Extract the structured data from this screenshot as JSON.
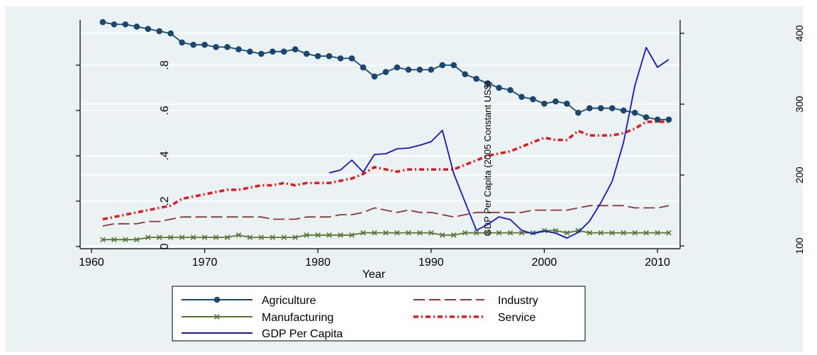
{
  "chart_data": {
    "type": "line",
    "xlabel": "Year",
    "right_axis_label": "GDP Per Capita (2005 Constant US$)",
    "x_ticks": [
      1960,
      1970,
      1980,
      1990,
      2000,
      2010
    ],
    "left_axis": {
      "ticks": [
        "0",
        ".2",
        ".4",
        ".6",
        ".8"
      ],
      "range": [
        -0.01,
        1.0
      ]
    },
    "right_axis": {
      "ticks": [
        "100",
        "200",
        "300",
        "400"
      ],
      "range": [
        96,
        419
      ]
    },
    "xlim": [
      1959,
      2012
    ],
    "series": [
      {
        "name": "Agriculture",
        "axis": "left",
        "color": "#1a476f",
        "style": "solid-circle-markers",
        "x": [
          1961,
          1962,
          1963,
          1964,
          1965,
          1966,
          1967,
          1968,
          1969,
          1970,
          1971,
          1972,
          1973,
          1974,
          1975,
          1976,
          1977,
          1978,
          1979,
          1980,
          1981,
          1982,
          1983,
          1984,
          1985,
          1986,
          1987,
          1988,
          1989,
          1990,
          1991,
          1992,
          1993,
          1994,
          1995,
          1996,
          1997,
          1998,
          1999,
          2000,
          2001,
          2002,
          2003,
          2004,
          2005,
          2006,
          2007,
          2008,
          2009,
          2010,
          2011
        ],
        "values": [
          0.99,
          0.98,
          0.98,
          0.97,
          0.96,
          0.95,
          0.94,
          0.9,
          0.89,
          0.89,
          0.88,
          0.88,
          0.87,
          0.86,
          0.85,
          0.86,
          0.86,
          0.87,
          0.85,
          0.84,
          0.84,
          0.83,
          0.83,
          0.79,
          0.75,
          0.77,
          0.79,
          0.78,
          0.78,
          0.78,
          0.8,
          0.8,
          0.76,
          0.74,
          0.72,
          0.7,
          0.69,
          0.66,
          0.65,
          0.63,
          0.64,
          0.63,
          0.59,
          0.61,
          0.61,
          0.61,
          0.6,
          0.59,
          0.57,
          0.56,
          0.56
        ]
      },
      {
        "name": "Industry",
        "axis": "left",
        "color": "#90353b",
        "style": "long-dash",
        "x": [
          1961,
          1962,
          1963,
          1964,
          1965,
          1966,
          1967,
          1968,
          1969,
          1970,
          1971,
          1972,
          1973,
          1974,
          1975,
          1976,
          1977,
          1978,
          1979,
          1980,
          1981,
          1982,
          1983,
          1984,
          1985,
          1986,
          1987,
          1988,
          1989,
          1990,
          1991,
          1992,
          1993,
          1994,
          1995,
          1996,
          1997,
          1998,
          1999,
          2000,
          2001,
          2002,
          2003,
          2004,
          2005,
          2006,
          2007,
          2008,
          2009,
          2010,
          2011
        ],
        "values": [
          0.09,
          0.1,
          0.1,
          0.1,
          0.11,
          0.11,
          0.12,
          0.13,
          0.13,
          0.13,
          0.13,
          0.13,
          0.13,
          0.13,
          0.13,
          0.12,
          0.12,
          0.12,
          0.13,
          0.13,
          0.13,
          0.14,
          0.14,
          0.15,
          0.17,
          0.16,
          0.15,
          0.16,
          0.15,
          0.15,
          0.14,
          0.13,
          0.14,
          0.15,
          0.15,
          0.15,
          0.15,
          0.15,
          0.16,
          0.16,
          0.16,
          0.16,
          0.17,
          0.18,
          0.18,
          0.18,
          0.18,
          0.17,
          0.17,
          0.17,
          0.18
        ]
      },
      {
        "name": "Manufacturing",
        "axis": "left",
        "color": "#55752f",
        "style": "solid-x-markers",
        "x": [
          1961,
          1962,
          1963,
          1964,
          1965,
          1966,
          1967,
          1968,
          1969,
          1970,
          1971,
          1972,
          1973,
          1974,
          1975,
          1976,
          1977,
          1978,
          1979,
          1980,
          1981,
          1982,
          1983,
          1984,
          1985,
          1986,
          1987,
          1988,
          1989,
          1990,
          1991,
          1992,
          1993,
          1994,
          1995,
          1996,
          1997,
          1998,
          1999,
          2000,
          2001,
          2002,
          2003,
          2004,
          2005,
          2006,
          2007,
          2008,
          2009,
          2010,
          2011
        ],
        "values": [
          0.03,
          0.03,
          0.03,
          0.03,
          0.04,
          0.04,
          0.04,
          0.04,
          0.04,
          0.04,
          0.04,
          0.04,
          0.05,
          0.04,
          0.04,
          0.04,
          0.04,
          0.04,
          0.05,
          0.05,
          0.05,
          0.05,
          0.05,
          0.06,
          0.06,
          0.06,
          0.06,
          0.06,
          0.06,
          0.06,
          0.05,
          0.05,
          0.06,
          0.06,
          0.06,
          0.06,
          0.06,
          0.06,
          0.06,
          0.07,
          0.07,
          0.06,
          0.07,
          0.06,
          0.06,
          0.06,
          0.06,
          0.06,
          0.06,
          0.06,
          0.06
        ]
      },
      {
        "name": "Service",
        "axis": "left",
        "color": "#e8161b",
        "style": "dash-dot",
        "x": [
          1961,
          1962,
          1963,
          1964,
          1965,
          1966,
          1967,
          1968,
          1969,
          1970,
          1971,
          1972,
          1973,
          1974,
          1975,
          1976,
          1977,
          1978,
          1979,
          1980,
          1981,
          1982,
          1983,
          1984,
          1985,
          1986,
          1987,
          1988,
          1989,
          1990,
          1991,
          1992,
          1993,
          1994,
          1995,
          1996,
          1997,
          1998,
          1999,
          2000,
          2001,
          2002,
          2003,
          2004,
          2005,
          2006,
          2007,
          2008,
          2009,
          2010,
          2011
        ],
        "values": [
          0.12,
          0.13,
          0.14,
          0.15,
          0.16,
          0.17,
          0.18,
          0.21,
          0.22,
          0.23,
          0.24,
          0.25,
          0.25,
          0.26,
          0.27,
          0.27,
          0.28,
          0.27,
          0.28,
          0.28,
          0.28,
          0.29,
          0.3,
          0.32,
          0.35,
          0.34,
          0.33,
          0.34,
          0.34,
          0.34,
          0.34,
          0.34,
          0.36,
          0.38,
          0.4,
          0.41,
          0.42,
          0.44,
          0.46,
          0.48,
          0.47,
          0.47,
          0.51,
          0.49,
          0.49,
          0.49,
          0.5,
          0.52,
          0.55,
          0.55,
          0.55
        ]
      },
      {
        "name": "GDP Per Capita",
        "axis": "right",
        "color": "#1414d4",
        "style": "solid",
        "x": [
          1981,
          1982,
          1983,
          1984,
          1985,
          1986,
          1987,
          1988,
          1989,
          1990,
          1991,
          1992,
          1993,
          1994,
          1995,
          1996,
          1997,
          1998,
          1999,
          2000,
          2001,
          2002,
          2003,
          2004,
          2005,
          2006,
          2007,
          2008,
          2009,
          2010,
          2011
        ],
        "values": [
          203,
          207,
          221,
          204,
          229,
          230,
          237,
          238,
          242,
          247,
          263,
          202,
          162,
          122,
          130,
          141,
          137,
          122,
          117,
          121,
          118,
          111,
          119,
          135,
          161,
          191,
          246,
          326,
          380,
          352,
          363
        ]
      }
    ],
    "legend": {
      "placement": "bottom",
      "entries": [
        "Agriculture",
        "Industry",
        "Manufacturing",
        "Service",
        "GDP Per Capita"
      ]
    }
  }
}
